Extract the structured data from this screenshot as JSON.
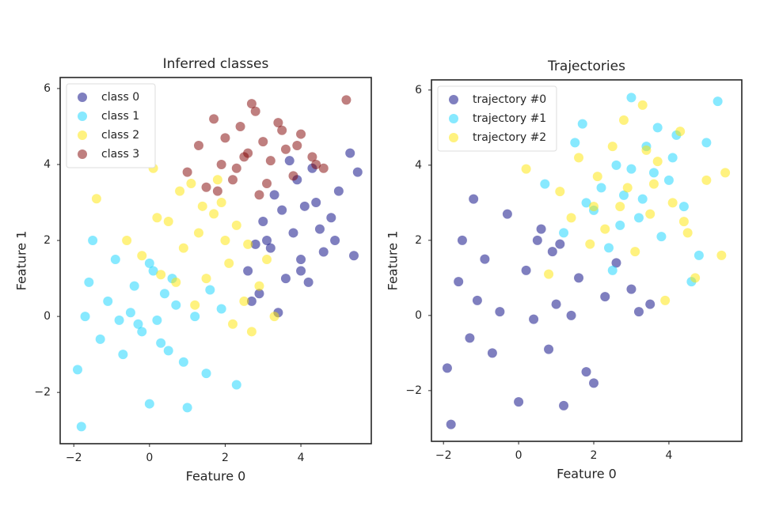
{
  "chart_data": [
    {
      "type": "scatter",
      "title": "Inferred classes",
      "x_label": "Feature 0",
      "y_label": "Feature 1",
      "xlim": [
        -2.36,
        5.86
      ],
      "ylim": [
        -3.35,
        6.29
      ],
      "xticks": [
        {
          "value": -2,
          "label": "−2"
        },
        0,
        2,
        4
      ],
      "yticks": [
        {
          "value": -2,
          "label": "−2"
        },
        0,
        2,
        4,
        6
      ],
      "legend": "upper left",
      "alpha": 0.5,
      "series": [
        {
          "name": "class 0",
          "color": "#000080",
          "x": [
            2.6,
            2.9,
            3.0,
            3.2,
            3.3,
            3.5,
            3.6,
            3.8,
            3.9,
            4.0,
            4.1,
            4.2,
            4.3,
            4.5,
            4.6,
            4.8,
            5.0,
            5.4,
            5.5,
            5.3,
            3.1,
            3.4,
            2.7,
            4.4,
            3.7,
            2.8,
            4.9,
            4.0
          ],
          "values": [
            1.2,
            0.6,
            2.5,
            1.8,
            3.2,
            2.8,
            1.0,
            2.2,
            3.6,
            1.5,
            2.9,
            0.9,
            3.9,
            2.3,
            1.7,
            2.6,
            3.3,
            1.6,
            3.8,
            4.3,
            2.0,
            0.1,
            0.4,
            3.0,
            4.1,
            1.9,
            2.0,
            1.2
          ]
        },
        {
          "name": "class 1",
          "color": "#10d4ff",
          "x": [
            -1.8,
            -1.9,
            -1.6,
            -1.5,
            -1.3,
            -1.1,
            -0.9,
            -0.7,
            -0.5,
            -0.4,
            -0.2,
            0.0,
            0.1,
            0.2,
            0.4,
            0.5,
            0.7,
            0.9,
            1.0,
            1.2,
            1.5,
            2.3,
            0.0,
            -0.3,
            0.6,
            -1.7,
            1.6,
            0.3,
            -0.8,
            1.9
          ],
          "values": [
            -2.9,
            -1.4,
            0.9,
            2.0,
            -0.6,
            0.4,
            1.5,
            -1.0,
            0.1,
            0.8,
            -0.4,
            -2.3,
            1.2,
            -0.1,
            0.6,
            -0.9,
            0.3,
            -1.2,
            -2.4,
            0.0,
            -1.5,
            -1.8,
            1.4,
            -0.2,
            1.0,
            0.0,
            0.7,
            -0.7,
            -0.1,
            0.2
          ]
        },
        {
          "name": "class 2",
          "color": "#ffe500",
          "x": [
            -1.4,
            -0.6,
            -0.2,
            0.1,
            0.3,
            0.5,
            0.7,
            0.9,
            1.1,
            1.3,
            1.5,
            1.7,
            1.9,
            2.1,
            2.3,
            2.5,
            2.7,
            2.9,
            3.1,
            3.3,
            1.2,
            2.0,
            0.2,
            1.8,
            2.6,
            0.8,
            1.4,
            2.2
          ],
          "values": [
            3.1,
            2.0,
            1.6,
            3.9,
            1.1,
            2.5,
            0.9,
            1.8,
            3.5,
            2.2,
            1.0,
            2.7,
            3.0,
            1.4,
            2.4,
            0.4,
            -0.4,
            0.8,
            1.5,
            0.0,
            0.3,
            2.0,
            2.6,
            3.6,
            1.9,
            3.3,
            2.9,
            -0.2
          ]
        },
        {
          "name": "class 3",
          "color": "#800000",
          "x": [
            1.0,
            1.3,
            1.5,
            1.7,
            1.9,
            2.0,
            2.2,
            2.4,
            2.6,
            2.8,
            2.9,
            3.0,
            3.2,
            3.4,
            3.6,
            3.8,
            4.0,
            4.3,
            4.6,
            5.2,
            2.3,
            2.7,
            3.1,
            3.5,
            1.8,
            2.5,
            3.9,
            4.4
          ],
          "values": [
            3.8,
            4.5,
            3.4,
            5.2,
            4.0,
            4.7,
            3.6,
            5.0,
            4.3,
            5.4,
            3.2,
            4.6,
            4.1,
            5.1,
            4.4,
            3.7,
            4.8,
            4.2,
            3.9,
            5.7,
            3.9,
            5.6,
            3.5,
            4.9,
            3.3,
            4.2,
            4.5,
            4.0
          ]
        }
      ]
    },
    {
      "type": "scatter",
      "title": "Trajectories",
      "x_label": "Feature 0",
      "y_label": "Feature 1",
      "xlim": [
        -2.32,
        5.94
      ],
      "ylim": [
        -3.35,
        6.27
      ],
      "xticks": [
        {
          "value": -2,
          "label": "−2"
        },
        0,
        2,
        4
      ],
      "yticks": [
        {
          "value": -2,
          "label": "−2"
        },
        0,
        2,
        4,
        6
      ],
      "legend": "upper left",
      "alpha": 0.5,
      "series": [
        {
          "name": "trajectory #0",
          "color": "#000080",
          "x": [
            -1.8,
            -1.9,
            -1.6,
            -1.5,
            -1.3,
            -1.1,
            -0.9,
            -0.7,
            -0.5,
            -0.3,
            0.0,
            0.2,
            0.4,
            0.6,
            0.8,
            1.0,
            1.2,
            1.4,
            1.6,
            1.8,
            2.0,
            2.3,
            2.6,
            3.0,
            3.2,
            3.5,
            0.5,
            1.1,
            -1.2,
            0.9
          ],
          "values": [
            -2.9,
            -1.4,
            0.9,
            2.0,
            -0.6,
            0.4,
            1.5,
            -1.0,
            0.1,
            2.7,
            -2.3,
            1.2,
            -0.1,
            2.3,
            -0.9,
            0.3,
            -2.4,
            0.0,
            1.0,
            -1.5,
            -1.8,
            0.5,
            1.4,
            0.7,
            0.1,
            0.3,
            2.0,
            1.9,
            3.1,
            1.7
          ]
        },
        {
          "name": "trajectory #1",
          "color": "#10d4ff",
          "x": [
            0.7,
            1.2,
            1.5,
            1.8,
            2.0,
            2.2,
            2.4,
            2.6,
            2.8,
            3.0,
            3.2,
            3.4,
            3.6,
            3.8,
            4.0,
            4.2,
            4.4,
            4.6,
            4.8,
            5.0,
            5.3,
            3.0,
            3.7,
            2.7,
            1.7,
            3.3,
            4.1,
            2.5
          ],
          "values": [
            3.5,
            2.2,
            4.6,
            3.0,
            2.8,
            3.4,
            1.8,
            4.0,
            3.2,
            5.8,
            2.6,
            4.5,
            3.8,
            2.1,
            3.6,
            4.8,
            2.9,
            0.9,
            1.6,
            4.6,
            5.7,
            3.9,
            5.0,
            2.4,
            5.1,
            3.1,
            4.2,
            1.2
          ]
        },
        {
          "name": "trajectory #2",
          "color": "#ffe500",
          "x": [
            0.2,
            0.8,
            1.1,
            1.4,
            1.6,
            1.9,
            2.1,
            2.3,
            2.5,
            2.7,
            2.9,
            3.1,
            3.3,
            3.5,
            3.7,
            3.9,
            4.1,
            4.3,
            4.5,
            4.7,
            5.0,
            5.4,
            5.5,
            3.4,
            2.8,
            4.4,
            2.0,
            3.6
          ],
          "values": [
            3.9,
            1.1,
            3.3,
            2.6,
            4.2,
            1.9,
            3.7,
            2.3,
            4.5,
            2.9,
            3.4,
            1.7,
            5.6,
            2.7,
            4.1,
            0.4,
            3.0,
            4.9,
            2.2,
            1.0,
            3.6,
            1.6,
            3.8,
            4.4,
            5.2,
            2.5,
            2.9,
            3.5
          ]
        }
      ]
    }
  ]
}
